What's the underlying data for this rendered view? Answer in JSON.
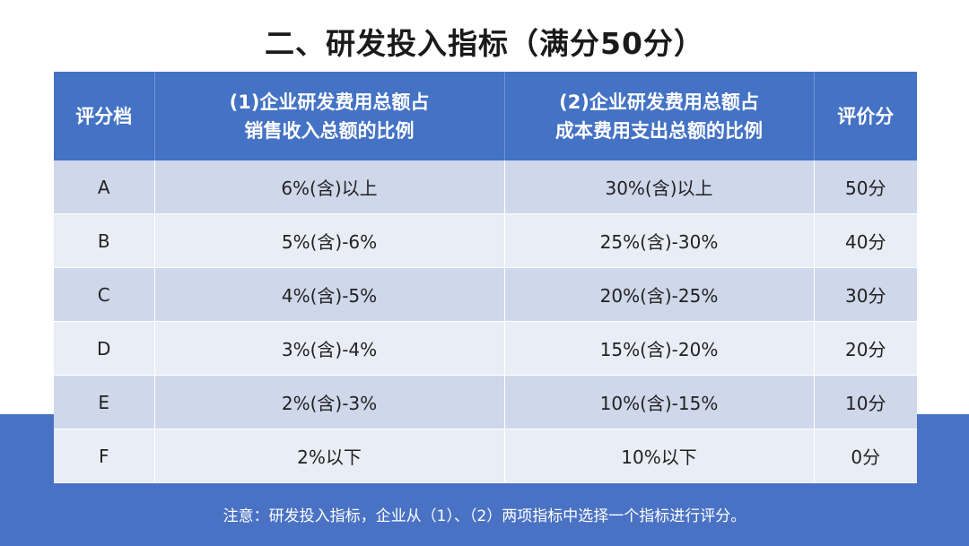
{
  "title": "二、研发投入指标（满分50分）",
  "table": {
    "headers": [
      {
        "line1": "评分档"
      },
      {
        "line1": "(1)企业研发费用总额占",
        "line2": "销售收入总额的比例"
      },
      {
        "line1": "(2)企业研发费用总额占",
        "line2": "成本费用支出总额的比例"
      },
      {
        "line1": "评价分"
      }
    ],
    "rows": [
      [
        "A",
        "6%(含)以上",
        "30%(含)以上",
        "50分"
      ],
      [
        "B",
        "5%(含)-6%",
        "25%(含)-30%",
        "40分"
      ],
      [
        "C",
        "4%(含)-5%",
        "20%(含)-25%",
        "30分"
      ],
      [
        "D",
        "3%(含)-4%",
        "15%(含)-20%",
        "20分"
      ],
      [
        "E",
        "2%(含)-3%",
        "10%(含)-15%",
        "10分"
      ],
      [
        "F",
        "2%以下",
        "10%以下",
        "0分"
      ]
    ]
  },
  "note": "注意：研发投入指标，企业从（1）、（2）两项指标中选择一个指标进行评分。",
  "colors": {
    "header_bg": "#4472c4",
    "band_bg": "#4a72c4",
    "row_odd": "#cfd7ea",
    "row_even": "#e9edf5"
  }
}
